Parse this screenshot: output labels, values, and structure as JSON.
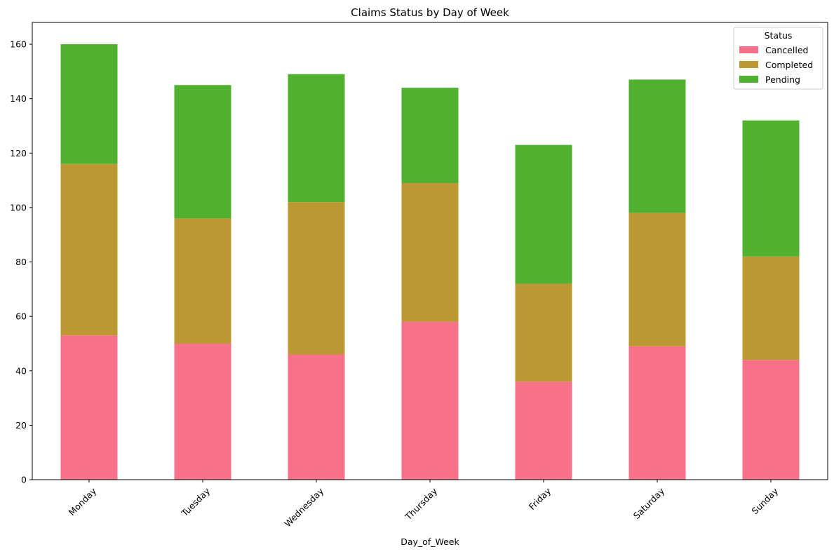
{
  "chart_data": {
    "type": "bar",
    "stacked": true,
    "title": "Claims Status by Day of Week",
    "xlabel": "Day_of_Week",
    "ylabel": "",
    "ylim": [
      0,
      168
    ],
    "yticks": [
      0,
      20,
      40,
      60,
      80,
      100,
      120,
      140,
      160
    ],
    "categories": [
      "Monday",
      "Tuesday",
      "Wednesday",
      "Thursday",
      "Friday",
      "Saturday",
      "Sunday"
    ],
    "series": [
      {
        "name": "Cancelled",
        "color": "#f77189",
        "values": [
          53,
          50,
          46,
          58,
          36,
          49,
          44
        ]
      },
      {
        "name": "Completed",
        "color": "#bb9832",
        "values": [
          63,
          46,
          56,
          51,
          36,
          49,
          38
        ]
      },
      {
        "name": "Pending",
        "color": "#50b131",
        "values": [
          44,
          49,
          47,
          35,
          51,
          49,
          50
        ]
      }
    ],
    "legend": {
      "title": "Status",
      "placement": "top-right"
    },
    "grid": false
  }
}
